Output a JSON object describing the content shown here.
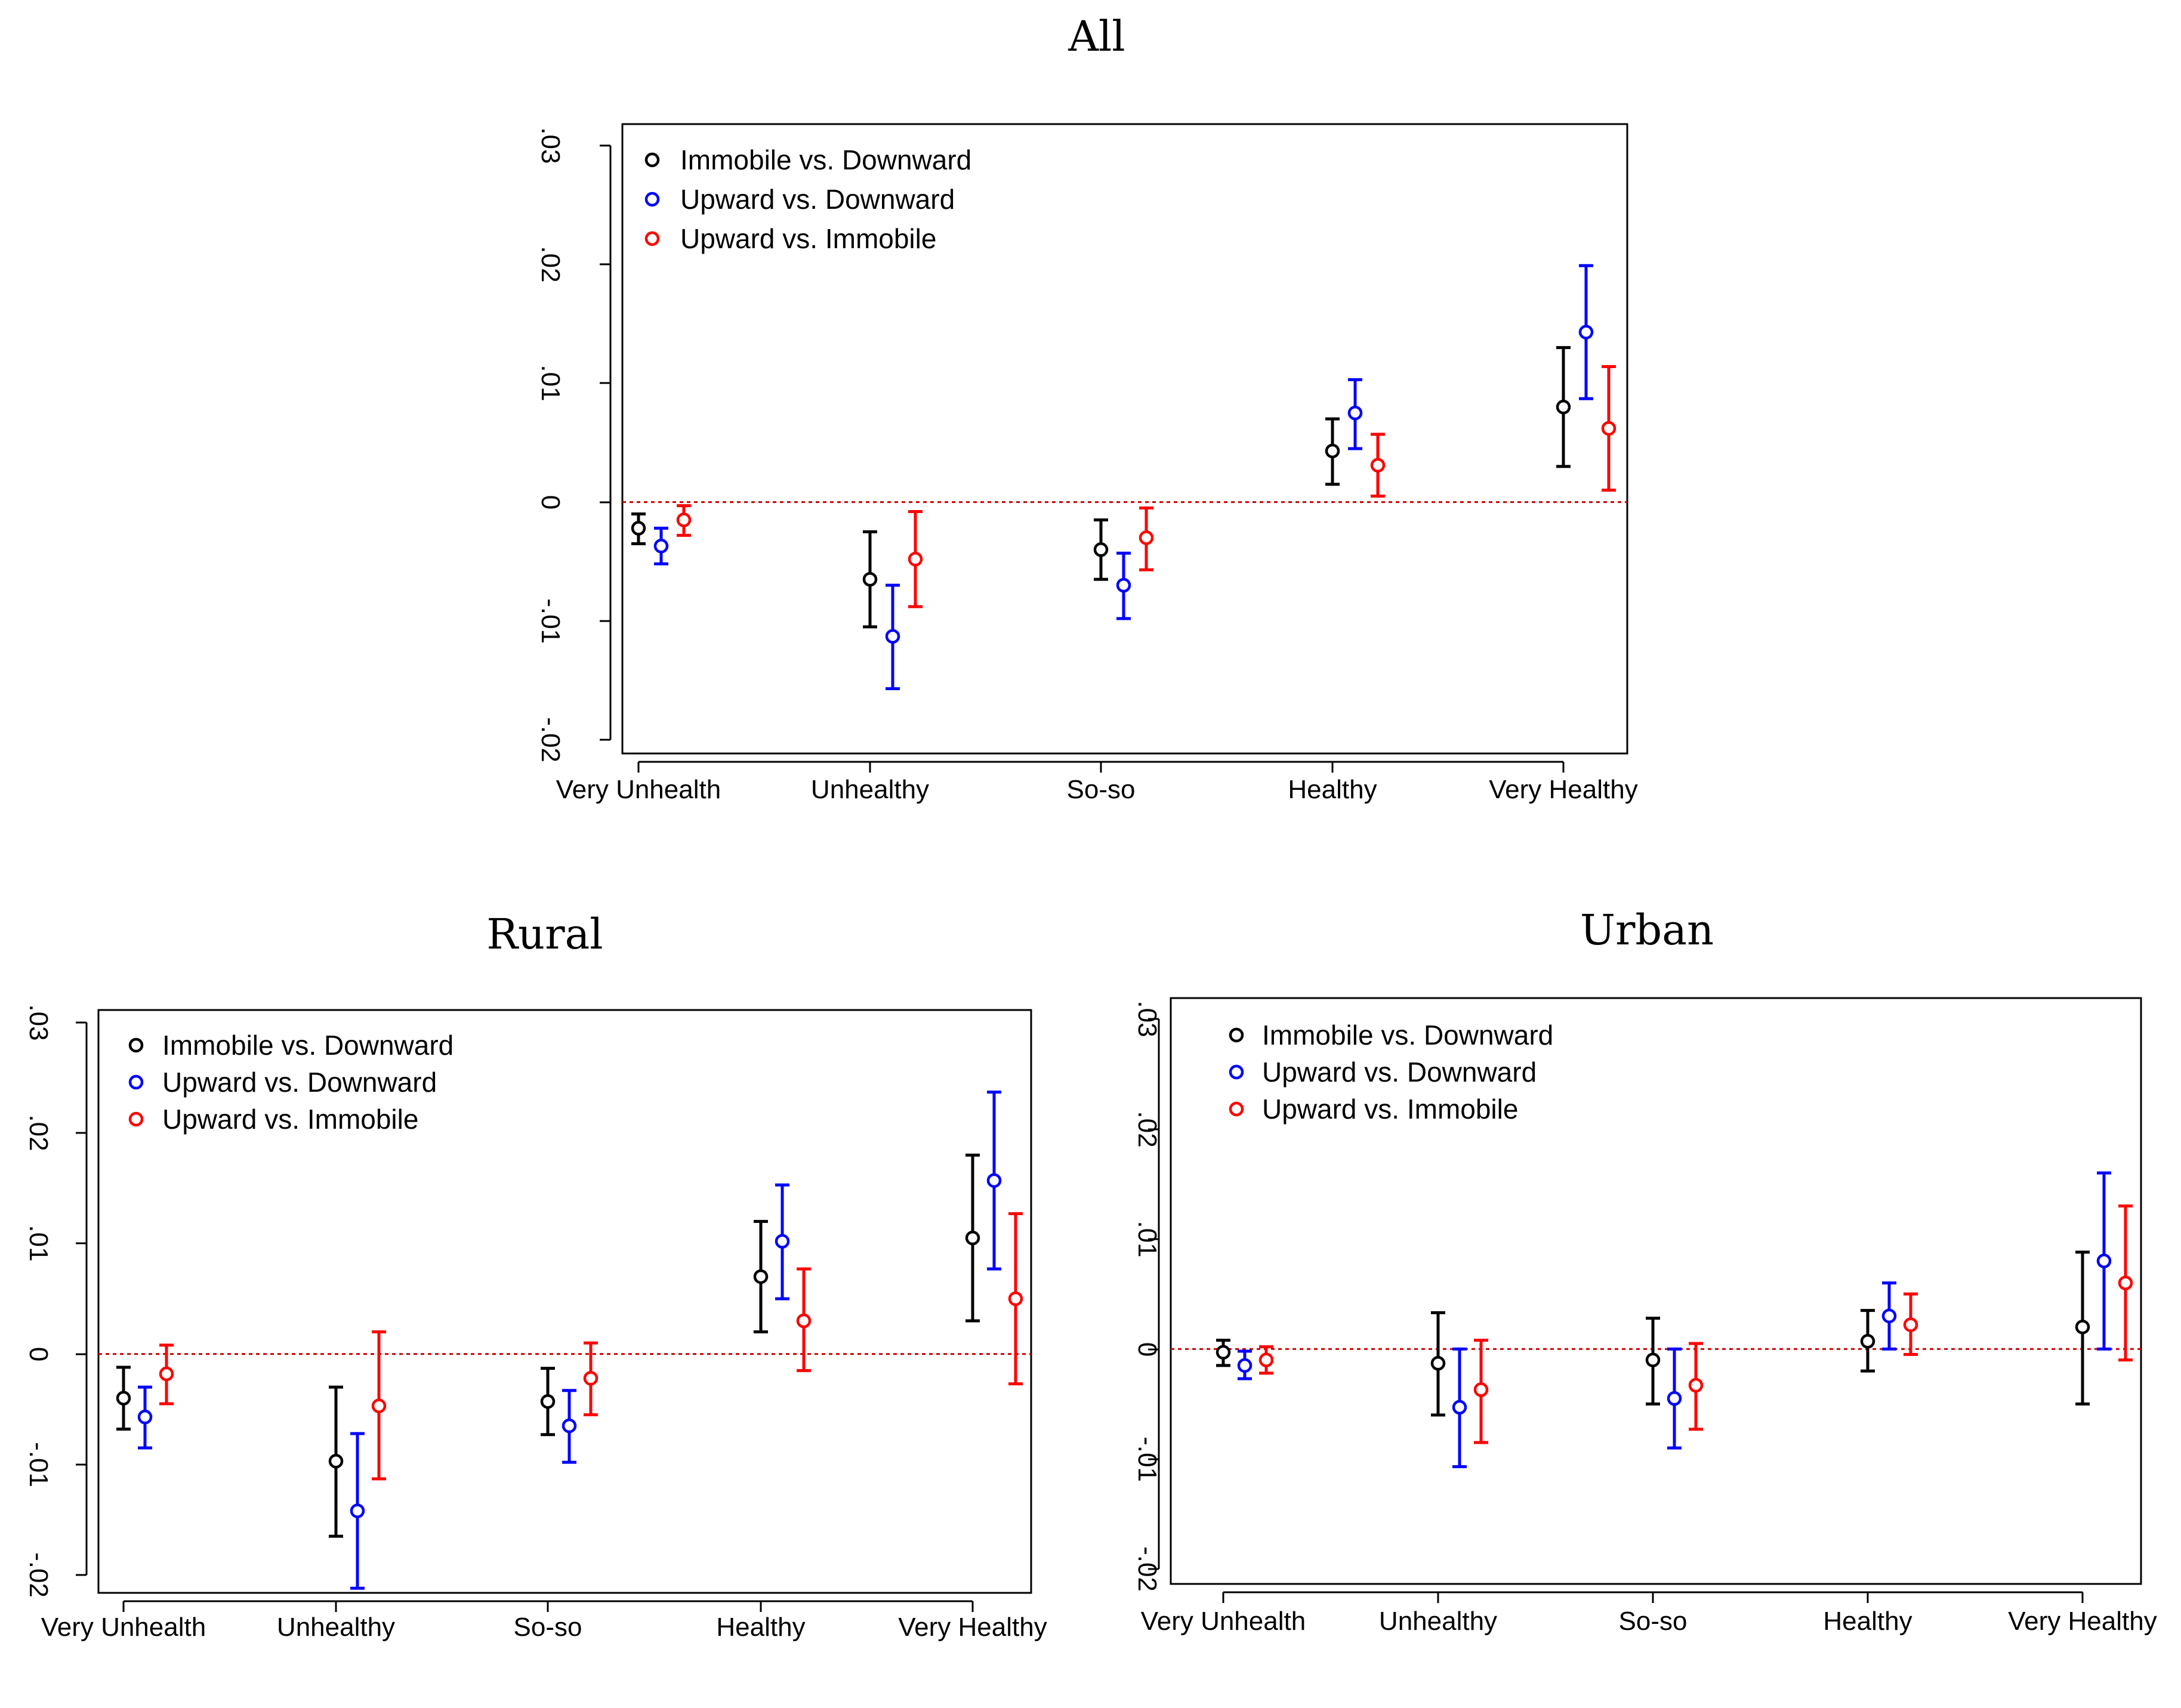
{
  "figure_title_top": "All",
  "colors": {
    "immobile_vs_downward": "#000000",
    "upward_vs_downward": "#0000ff",
    "upward_vs_immobile": "#ff0000",
    "zero_line": "#cc0000"
  },
  "chart_data": [
    {
      "id": "all",
      "type": "scatter",
      "subtype": "point-with-error-bars",
      "title": "All",
      "xlabel": "",
      "ylabel": "",
      "categories": [
        "Very Unhealth",
        "Unhealthy",
        "So-so",
        "Healthy",
        "Very Healthy"
      ],
      "yticks": [
        "-.02",
        "-.01",
        "0",
        ".01",
        ".02",
        ".03"
      ],
      "ylim": [
        -0.0215,
        0.0315
      ],
      "reference_line": 0,
      "legend_position": "top-left",
      "series": [
        {
          "name": "Immobile vs. Downward",
          "color": "#000000",
          "values": [
            -0.0022,
            -0.0065,
            -0.004,
            0.0043,
            0.008
          ],
          "lower": [
            -0.0035,
            -0.0105,
            -0.0065,
            0.0015,
            0.003
          ],
          "upper": [
            -0.001,
            -0.0025,
            -0.0015,
            0.007,
            0.013
          ]
        },
        {
          "name": "Upward vs. Downward",
          "color": "#0000ff",
          "values": [
            -0.0037,
            -0.0113,
            -0.007,
            0.0075,
            0.0143
          ],
          "lower": [
            -0.0052,
            -0.0157,
            -0.0098,
            0.0045,
            0.0087
          ],
          "upper": [
            -0.0022,
            -0.007,
            -0.0043,
            0.0103,
            0.0199
          ]
        },
        {
          "name": "Upward vs. Immobile",
          "color": "#ff0000",
          "values": [
            -0.0015,
            -0.0048,
            -0.003,
            0.0031,
            0.0062
          ],
          "lower": [
            -0.0028,
            -0.0088,
            -0.0057,
            0.0005,
            0.001
          ],
          "upper": [
            -0.0003,
            -0.0008,
            -0.0005,
            0.0057,
            0.0114
          ]
        }
      ]
    },
    {
      "id": "rural",
      "type": "scatter",
      "subtype": "point-with-error-bars",
      "title": "Rural",
      "xlabel": "",
      "ylabel": "",
      "categories": [
        "Very Unhealth",
        "Unhealthy",
        "So-so",
        "Healthy",
        "Very Healthy"
      ],
      "yticks": [
        "-.02",
        "-.01",
        "0",
        ".01",
        ".02",
        ".03"
      ],
      "ylim": [
        -0.0215,
        0.0315
      ],
      "reference_line": 0,
      "legend_position": "top-left",
      "series": [
        {
          "name": "Immobile vs. Downward",
          "color": "#000000",
          "values": [
            -0.004,
            -0.0097,
            -0.0043,
            0.007,
            0.0105
          ],
          "lower": [
            -0.0068,
            -0.0165,
            -0.0073,
            0.002,
            0.003
          ],
          "upper": [
            -0.0012,
            -0.003,
            -0.0013,
            0.012,
            0.018
          ]
        },
        {
          "name": "Upward vs. Downward",
          "color": "#0000ff",
          "values": [
            -0.0057,
            -0.0142,
            -0.0065,
            0.0102,
            0.0157
          ],
          "lower": [
            -0.0085,
            -0.0212,
            -0.0098,
            0.005,
            0.0077
          ],
          "upper": [
            -0.003,
            -0.0072,
            -0.0033,
            0.0153,
            0.0237
          ]
        },
        {
          "name": "Upward vs. Immobile",
          "color": "#ff0000",
          "values": [
            -0.0018,
            -0.0047,
            -0.0022,
            0.003,
            0.005
          ],
          "lower": [
            -0.0045,
            -0.0113,
            -0.0055,
            -0.0015,
            -0.0027
          ],
          "upper": [
            0.0008,
            0.002,
            0.001,
            0.0077,
            0.0127
          ]
        }
      ]
    },
    {
      "id": "urban",
      "type": "scatter",
      "subtype": "point-with-error-bars",
      "title": "Urban",
      "xlabel": "",
      "ylabel": "",
      "categories": [
        "Very Unhealth",
        "Unhealthy",
        "So-so",
        "Healthy",
        "Very Healthy"
      ],
      "yticks": [
        "-.02",
        "-.01",
        "0",
        ".01",
        ".02",
        ".03"
      ],
      "ylim": [
        -0.0215,
        0.0315
      ],
      "reference_line": 0,
      "legend_position": "top-left",
      "series": [
        {
          "name": "Immobile vs. Downward",
          "color": "#000000",
          "values": [
            -0.0003,
            -0.0013,
            -0.001,
            0.0007,
            0.002
          ],
          "lower": [
            -0.0015,
            -0.006,
            -0.005,
            -0.002,
            -0.005
          ],
          "upper": [
            0.0008,
            0.0033,
            0.0028,
            0.0035,
            0.0088
          ]
        },
        {
          "name": "Upward vs. Downward",
          "color": "#0000ff",
          "values": [
            -0.0015,
            -0.0053,
            -0.0045,
            0.003,
            0.008
          ],
          "lower": [
            -0.0027,
            -0.0107,
            -0.009,
            0.0,
            0.0
          ],
          "upper": [
            -0.0002,
            0.0,
            0.0,
            0.006,
            0.016
          ]
        },
        {
          "name": "Upward vs. Immobile",
          "color": "#ff0000",
          "values": [
            -0.001,
            -0.0037,
            -0.0033,
            0.0022,
            0.006
          ],
          "lower": [
            -0.0022,
            -0.0085,
            -0.0073,
            -0.0005,
            -0.001
          ],
          "upper": [
            0.0002,
            0.0008,
            0.0005,
            0.005,
            0.013
          ]
        }
      ]
    }
  ]
}
